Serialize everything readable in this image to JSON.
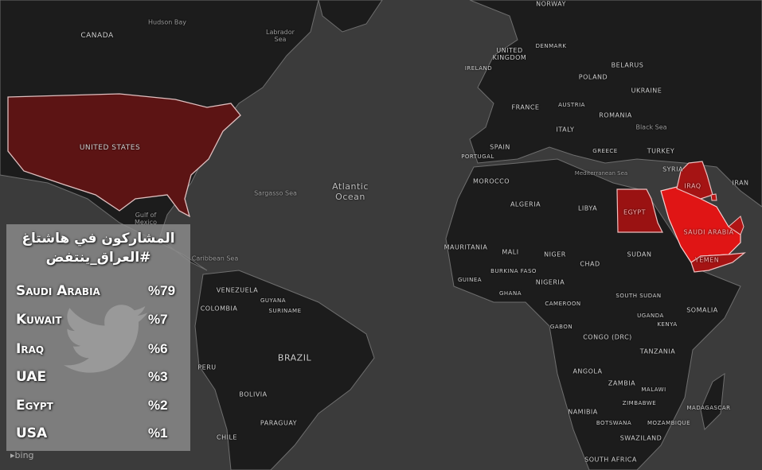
{
  "map": {
    "colors": {
      "ocean": "#3b3b3b",
      "land": "#1c1c1c",
      "borders": "#7a7a7a",
      "usa": "#5c1414",
      "saudi_arabia": "#e01515",
      "iraq": "#a51414",
      "egypt": "#9a1212",
      "yemen": "#a51414",
      "kuwait": "#b81414",
      "uae": "#b01414"
    },
    "labels": {
      "canada": "CANADA",
      "hudson_bay": "Hudson Bay",
      "labrador_sea": "Labrador Sea",
      "united_states": "UNITED STATES",
      "sargasso_sea": "Sargasso Sea",
      "atlantic_ocean": "Atlantic Ocean",
      "gulf_of_mexico": "Gulf of Mexico",
      "caribbean_sea": "Caribbean Sea",
      "venezuela": "VENEZUELA",
      "colombia": "COLOMBIA",
      "guyana": "GUYANA",
      "suriname": "SURINAME",
      "brazil": "BRAZIL",
      "peru": "PERU",
      "bolivia": "BOLIVIA",
      "paraguay": "PARAGUAY",
      "chile": "CHILE",
      "norway": "NORWAY",
      "denmark": "DENMARK",
      "united_kingdom": "UNITED KINGDOM",
      "ireland": "IRELAND",
      "belarus": "BELARUS",
      "poland": "POLAND",
      "ukraine": "UKRAINE",
      "france": "FRANCE",
      "austria": "AUSTRIA",
      "romania": "ROMANIA",
      "italy": "ITALY",
      "black_sea": "Black Sea",
      "spain": "SPAIN",
      "portugal": "PORTUGAL",
      "greece": "GREECE",
      "turkey": "TURKEY",
      "syria": "SYRIA",
      "mediterranean_sea": "Mediterranean Sea",
      "iran": "IRAN",
      "iraq": "IRAQ",
      "morocco": "MOROCCO",
      "algeria": "ALGERIA",
      "libya": "LIBYA",
      "egypt": "EGYPT",
      "saudi_arabia": "SAUDI ARABIA",
      "mauritania": "MAURITANIA",
      "mali": "MALI",
      "niger": "NIGER",
      "chad": "CHAD",
      "sudan": "SUDAN",
      "yemen": "YEMEN",
      "burkina_faso": "BURKINA FASO",
      "guinea": "GUINEA",
      "nigeria": "NIGERIA",
      "ghana": "GHANA",
      "south_sudan": "SOUTH SUDAN",
      "cameroon": "CAMEROON",
      "somalia": "SOMALIA",
      "uganda": "UGANDA",
      "gabon": "GABON",
      "kenya": "KENYA",
      "congo_drc": "CONGO (DRC)",
      "tanzania": "TANZANIA",
      "angola": "ANGOLA",
      "zambia": "ZAMBIA",
      "malawi": "MALAWI",
      "zimbabwe": "ZIMBABWE",
      "madagascar": "MADAGASCAR",
      "namibia": "NAMIBIA",
      "mozambique": "MOZAMBIQUE",
      "botswana": "BOTSWANA",
      "swaziland": "SWAZILAND",
      "south_africa": "SOUTH AFRICA"
    },
    "attribution": "bing"
  },
  "panel": {
    "title_line1": "المشاركون في هاشتاغ",
    "title_line2": "#العراق_ينتفض",
    "watermark_icon": "twitter-bird-icon",
    "rows": [
      {
        "country": "Saudi Arabia",
        "percent": "%79"
      },
      {
        "country": "Kuwait",
        "percent": "%7"
      },
      {
        "country": "Iraq",
        "percent": "%6"
      },
      {
        "country": "UAE",
        "percent": "%3"
      },
      {
        "country": "Egypt",
        "percent": "%2"
      },
      {
        "country": "USA",
        "percent": "%1"
      }
    ]
  }
}
